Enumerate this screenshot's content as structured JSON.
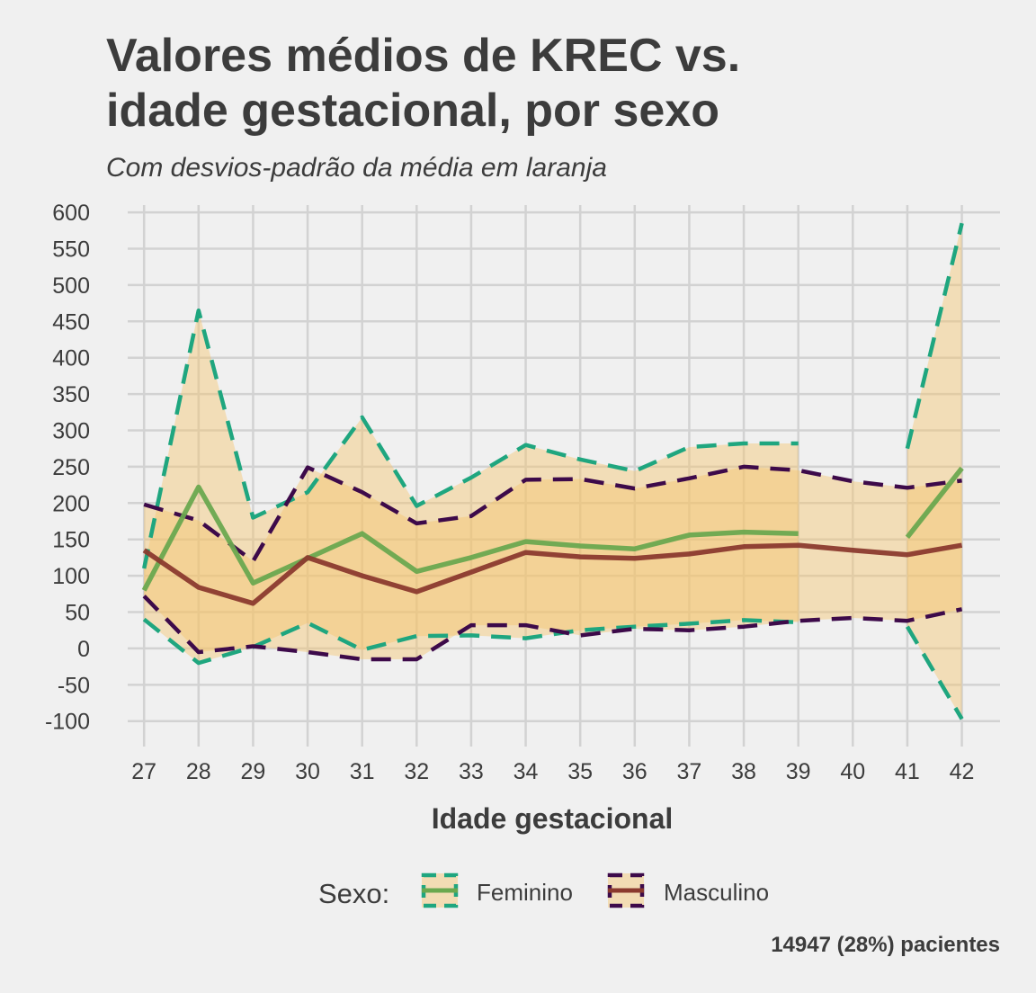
{
  "chart_data": {
    "type": "line",
    "title_lines": [
      "Valores médios de KREC vs.",
      "idade gestacional, por sexo"
    ],
    "subtitle": "Com desvios-padrão da média em laranja",
    "xlabel": "Idade gestacional",
    "ylabel": "",
    "caption": "14947 (28%) pacientes",
    "x": [
      27,
      28,
      29,
      30,
      31,
      32,
      33,
      34,
      35,
      36,
      37,
      38,
      39,
      40,
      41,
      42
    ],
    "xlim": [
      26.7,
      42.7
    ],
    "ylim": [
      -135,
      610
    ],
    "yticks": [
      -100,
      -50,
      0,
      50,
      100,
      150,
      200,
      250,
      300,
      350,
      400,
      450,
      500,
      550,
      600
    ],
    "grid": true,
    "legend": {
      "position": "bottom",
      "title": "Sexo:",
      "entries": [
        "Feminino",
        "Masculino"
      ]
    },
    "ribbon_color": "#f5c46a",
    "series": [
      {
        "name": "Feminino",
        "mean_color": "#6aa84f",
        "sd_color": "#1fa67f",
        "mean": [
          80,
          222,
          90,
          124,
          158,
          106,
          125,
          147,
          141,
          137,
          156,
          160,
          158,
          null,
          153,
          248
        ],
        "upper": [
          110,
          465,
          180,
          215,
          318,
          196,
          235,
          280,
          260,
          244,
          277,
          282,
          282,
          null,
          275,
          585
        ],
        "lower": [
          40,
          -20,
          2,
          35,
          -2,
          17,
          18,
          14,
          25,
          30,
          34,
          39,
          36,
          null,
          30,
          -97
        ]
      },
      {
        "name": "Masculino",
        "mean_color": "#8b3a2e",
        "sd_color": "#3d0a4a",
        "mean": [
          135,
          84,
          62,
          125,
          100,
          78,
          105,
          132,
          126,
          124,
          130,
          140,
          142,
          135,
          129,
          142
        ],
        "upper": [
          198,
          176,
          120,
          249,
          215,
          172,
          182,
          232,
          233,
          220,
          234,
          250,
          245,
          230,
          221,
          231
        ],
        "lower": [
          72,
          -5,
          3,
          -5,
          -15,
          -15,
          32,
          32,
          18,
          27,
          25,
          30,
          38,
          42,
          38,
          54
        ]
      }
    ]
  }
}
